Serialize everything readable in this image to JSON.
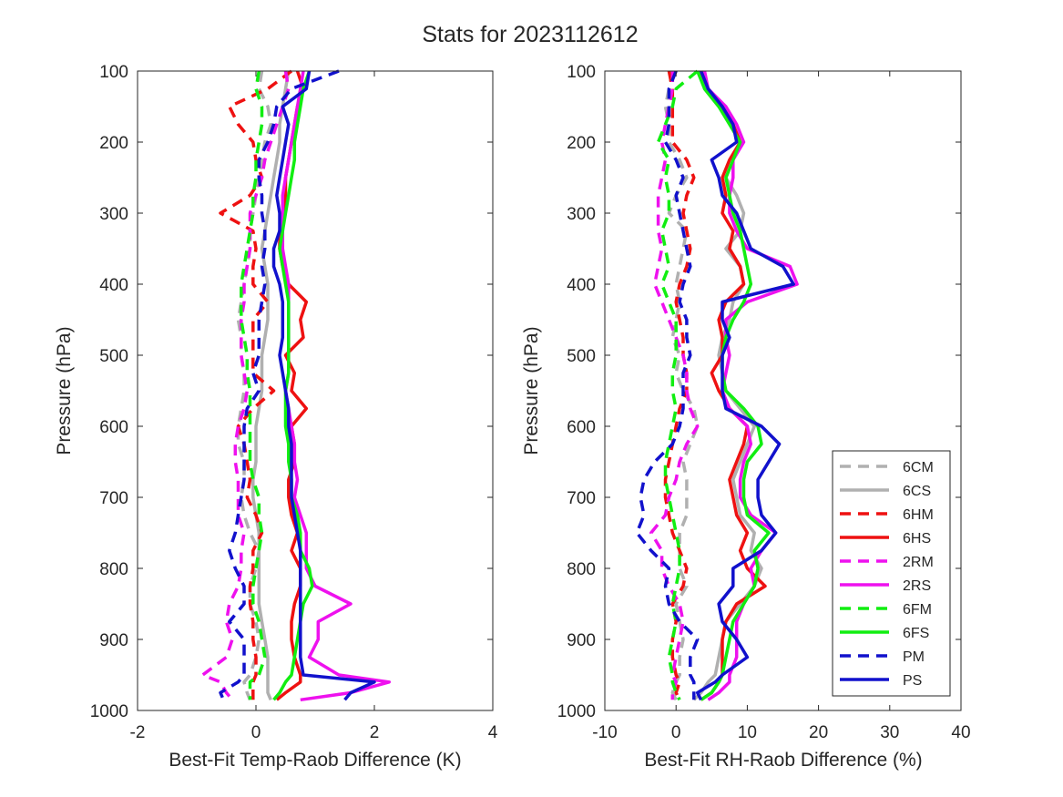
{
  "figure": {
    "title": "Stats for 2023112612"
  },
  "styles": {
    "6CM": {
      "color": "#b0b0b0",
      "dash": true
    },
    "6CS": {
      "color": "#b0b0b0",
      "dash": false
    },
    "6HM": {
      "color": "#ee1111",
      "dash": true
    },
    "6HS": {
      "color": "#ee1111",
      "dash": false
    },
    "2RM": {
      "color": "#ee11ee",
      "dash": true
    },
    "2RS": {
      "color": "#ee11ee",
      "dash": false
    },
    "6FM": {
      "color": "#11ee11",
      "dash": true
    },
    "6FS": {
      "color": "#11ee11",
      "dash": false
    },
    "PM": {
      "color": "#1111cc",
      "dash": true
    },
    "PS": {
      "color": "#1111cc",
      "dash": false
    }
  },
  "legend": {
    "location": "bottom-right of right panel",
    "entries": [
      "6CM",
      "6CS",
      "6HM",
      "6HS",
      "2RM",
      "2RS",
      "6FM",
      "6FS",
      "PM",
      "PS"
    ]
  },
  "chart_data": [
    {
      "type": "line",
      "xlabel": "Best-Fit Temp-Raob Difference (K)",
      "ylabel": "Pressure (hPa)",
      "xlim": [
        -2,
        4
      ],
      "ylim": [
        1000,
        100
      ],
      "y_reversed": true,
      "xticks": [
        -2,
        0,
        2,
        4
      ],
      "yticks": [
        100,
        200,
        300,
        400,
        500,
        600,
        700,
        800,
        900,
        1000
      ],
      "grid": false,
      "pressure": [
        100,
        125,
        150,
        175,
        200,
        225,
        250,
        275,
        300,
        325,
        350,
        375,
        400,
        425,
        450,
        475,
        500,
        525,
        550,
        575,
        600,
        625,
        650,
        675,
        700,
        725,
        750,
        775,
        800,
        825,
        850,
        875,
        900,
        925,
        950,
        960,
        975,
        985
      ],
      "series": [
        {
          "name": "6CM",
          "values": [
            0.1,
            0.05,
            0.2,
            0.25,
            0.15,
            0.1,
            0.05,
            0.0,
            -0.05,
            -0.1,
            -0.1,
            -0.15,
            -0.2,
            -0.25,
            -0.3,
            -0.25,
            -0.25,
            -0.2,
            -0.2,
            -0.25,
            -0.3,
            -0.3,
            -0.2,
            -0.2,
            -0.25,
            -0.2,
            -0.1,
            0.05,
            0.0,
            -0.1,
            -0.1,
            0.0,
            0.05,
            0.0,
            -0.1,
            -0.2,
            -0.15,
            -0.1
          ]
        },
        {
          "name": "6CS",
          "values": [
            0.55,
            0.5,
            0.45,
            0.4,
            0.4,
            0.35,
            0.3,
            0.25,
            0.2,
            0.15,
            0.1,
            0.15,
            0.2,
            0.2,
            0.2,
            0.15,
            0.1,
            0.1,
            0.1,
            0.05,
            0.0,
            0.0,
            0.0,
            -0.05,
            -0.05,
            0.0,
            0.05,
            0.05,
            0.05,
            0.05,
            0.05,
            0.1,
            0.15,
            0.2,
            0.2,
            0.2,
            0.2,
            0.25
          ]
        },
        {
          "name": "6HM",
          "values": [
            0.6,
            0.2,
            -0.45,
            -0.3,
            -0.05,
            0.0,
            0.1,
            -0.1,
            -0.6,
            -0.05,
            0.0,
            -0.05,
            -0.05,
            0.2,
            -0.05,
            -0.05,
            -0.05,
            -0.05,
            0.3,
            -0.05,
            -0.3,
            -0.2,
            -0.15,
            -0.1,
            -0.15,
            0.0,
            0.1,
            -0.05,
            -0.05,
            -0.1,
            -0.1,
            -0.05,
            -0.05,
            0.0,
            0.0,
            -0.05,
            -0.05,
            -0.05
          ]
        },
        {
          "name": "6HS",
          "values": [
            0.7,
            0.8,
            0.7,
            0.65,
            0.6,
            0.55,
            0.5,
            0.5,
            0.45,
            0.4,
            0.4,
            0.45,
            0.55,
            0.85,
            0.75,
            0.8,
            0.5,
            0.65,
            0.6,
            0.85,
            0.6,
            0.65,
            0.65,
            0.55,
            0.55,
            0.6,
            0.7,
            0.6,
            0.75,
            0.75,
            0.65,
            0.6,
            0.6,
            0.65,
            0.75,
            0.75,
            0.5,
            0.35
          ]
        },
        {
          "name": "2RM",
          "values": [
            0.5,
            0.55,
            0.45,
            0.35,
            0.25,
            0.15,
            0.1,
            0.0,
            -0.1,
            -0.1,
            -0.1,
            -0.15,
            -0.2,
            -0.2,
            -0.25,
            -0.25,
            -0.25,
            -0.2,
            -0.15,
            -0.2,
            -0.3,
            -0.35,
            -0.35,
            -0.3,
            -0.3,
            -0.3,
            -0.2,
            -0.25,
            -0.25,
            -0.3,
            -0.45,
            -0.5,
            -0.4,
            -0.5,
            -0.9,
            -0.6,
            -0.5,
            -0.4
          ]
        },
        {
          "name": "2RS",
          "values": [
            0.8,
            0.75,
            0.7,
            0.65,
            0.6,
            0.55,
            0.5,
            0.45,
            0.45,
            0.45,
            0.45,
            0.5,
            0.55,
            0.55,
            0.55,
            0.55,
            0.55,
            0.55,
            0.5,
            0.55,
            0.6,
            0.65,
            0.65,
            0.7,
            0.65,
            0.75,
            0.85,
            0.85,
            0.85,
            1.0,
            1.6,
            1.05,
            1.05,
            0.9,
            1.4,
            2.25,
            1.6,
            0.75
          ]
        },
        {
          "name": "6FM",
          "values": [
            0.05,
            0.0,
            0.1,
            0.1,
            0.05,
            0.0,
            0.0,
            -0.05,
            -0.05,
            -0.1,
            -0.15,
            -0.2,
            -0.25,
            -0.25,
            -0.25,
            -0.2,
            -0.15,
            -0.15,
            -0.1,
            -0.1,
            -0.1,
            -0.1,
            -0.1,
            -0.05,
            0.05,
            0.05,
            0.1,
            0.05,
            0.0,
            -0.05,
            -0.05,
            0.05,
            0.1,
            0.15,
            0.05,
            -0.1,
            -0.1,
            -0.1
          ]
        },
        {
          "name": "6FS",
          "values": [
            0.9,
            0.8,
            0.75,
            0.7,
            0.65,
            0.65,
            0.6,
            0.55,
            0.5,
            0.45,
            0.4,
            0.45,
            0.5,
            0.55,
            0.55,
            0.55,
            0.55,
            0.55,
            0.5,
            0.5,
            0.5,
            0.55,
            0.55,
            0.6,
            0.6,
            0.7,
            0.75,
            0.75,
            0.9,
            0.95,
            0.8,
            0.75,
            0.7,
            0.65,
            0.6,
            0.5,
            0.4,
            0.3
          ]
        },
        {
          "name": "PM",
          "values": [
            1.4,
            0.6,
            0.35,
            0.3,
            0.2,
            0.05,
            0.05,
            0.1,
            0.1,
            0.15,
            0.15,
            0.1,
            0.15,
            0.1,
            0.05,
            0.05,
            0.05,
            -0.05,
            0.05,
            -0.15,
            -0.2,
            -0.2,
            -0.2,
            -0.2,
            -0.25,
            -0.3,
            -0.35,
            -0.45,
            -0.35,
            -0.2,
            -0.2,
            -0.45,
            -0.2,
            -0.2,
            -0.2,
            -0.3,
            -0.6,
            -0.55
          ]
        },
        {
          "name": "PS",
          "values": [
            0.9,
            0.85,
            0.45,
            0.55,
            0.5,
            0.45,
            0.4,
            0.35,
            0.4,
            0.4,
            0.3,
            0.3,
            0.4,
            0.45,
            0.45,
            0.45,
            0.4,
            0.45,
            0.5,
            0.55,
            0.55,
            0.6,
            0.6,
            0.6,
            0.6,
            0.65,
            0.7,
            0.75,
            0.75,
            0.75,
            0.75,
            0.75,
            0.75,
            0.75,
            0.8,
            2.0,
            1.6,
            1.5
          ]
        }
      ]
    },
    {
      "type": "line",
      "xlabel": "Best-Fit RH-Raob Difference (%)",
      "ylabel": "Pressure (hPa)",
      "xlim": [
        -10,
        40
      ],
      "ylim": [
        1000,
        100
      ],
      "y_reversed": true,
      "xticks": [
        -10,
        0,
        10,
        20,
        30,
        40
      ],
      "yticks": [
        100,
        200,
        300,
        400,
        500,
        600,
        700,
        800,
        900,
        1000
      ],
      "grid": false,
      "pressure": [
        100,
        125,
        150,
        175,
        200,
        225,
        250,
        275,
        300,
        325,
        350,
        375,
        400,
        425,
        450,
        475,
        500,
        525,
        550,
        575,
        600,
        625,
        650,
        675,
        700,
        725,
        750,
        775,
        800,
        825,
        850,
        875,
        900,
        925,
        950,
        960,
        975,
        985
      ],
      "series": [
        {
          "name": "6CM",
          "values": [
            -0.5,
            -1.0,
            -1.5,
            -1.0,
            -1.0,
            0.5,
            1.5,
            0.0,
            -1.0,
            1.5,
            1.0,
            0.5,
            0.0,
            0.5,
            0.0,
            -0.5,
            0.5,
            0.0,
            1.0,
            2.5,
            3.0,
            2.0,
            1.0,
            1.5,
            1.5,
            1.5,
            0.5,
            0.5,
            0.5,
            1.5,
            0.0,
            0.5,
            1.0,
            0.5,
            0.5,
            0.0,
            -0.5,
            0.0
          ]
        },
        {
          "name": "6CS",
          "values": [
            3.5,
            4.0,
            6.0,
            8.0,
            9.0,
            8.0,
            7.0,
            8.5,
            9.5,
            9.0,
            7.0,
            9.0,
            9.5,
            8.0,
            7.5,
            6.5,
            6.0,
            6.5,
            7.0,
            9.0,
            11.0,
            10.0,
            9.0,
            8.0,
            8.5,
            9.0,
            11.0,
            10.5,
            12.0,
            11.0,
            9.0,
            7.0,
            6.5,
            6.0,
            5.5,
            4.5,
            3.5,
            2.5
          ]
        },
        {
          "name": "6HM",
          "values": [
            -1.0,
            -0.5,
            -0.5,
            -0.5,
            -0.5,
            1.5,
            2.5,
            1.5,
            1.0,
            1.5,
            2.0,
            1.5,
            0.5,
            0.0,
            0.5,
            1.0,
            1.0,
            1.5,
            1.5,
            0.5,
            0.0,
            -0.5,
            -1.0,
            -1.5,
            -1.5,
            -1.0,
            -0.5,
            0.5,
            1.5,
            1.0,
            -0.5,
            0.0,
            -0.5,
            -0.5,
            0.0,
            0.5,
            0.0,
            0.5
          ]
        },
        {
          "name": "6HS",
          "values": [
            3.5,
            4.5,
            6.5,
            8.0,
            9.0,
            7.5,
            6.5,
            7.0,
            6.5,
            8.0,
            7.5,
            9.0,
            9.5,
            7.0,
            6.0,
            6.5,
            6.5,
            5.0,
            6.0,
            7.5,
            10.0,
            9.5,
            8.5,
            7.5,
            8.0,
            8.5,
            10.0,
            9.0,
            10.0,
            12.5,
            8.5,
            7.0,
            6.5,
            6.5,
            6.5,
            6.0,
            5.0,
            3.5
          ]
        },
        {
          "name": "2RM",
          "values": [
            -0.5,
            -0.5,
            -1.0,
            -1.5,
            -2.0,
            -1.5,
            -2.0,
            -2.5,
            -2.5,
            -2.5,
            -2.0,
            -2.5,
            -3.0,
            -2.0,
            -1.0,
            0.0,
            1.0,
            1.5,
            1.5,
            2.0,
            3.0,
            1.5,
            0.5,
            0.0,
            -1.0,
            -1.5,
            -3.5,
            -2.0,
            -2.0,
            -1.0,
            0.5,
            1.0,
            0.5,
            0.0,
            -0.5,
            0.0,
            -0.5,
            -0.5
          ]
        },
        {
          "name": "2RS",
          "values": [
            4.0,
            4.5,
            7.0,
            8.5,
            9.5,
            8.0,
            8.0,
            7.5,
            7.5,
            8.5,
            10.0,
            16.0,
            17.0,
            10.0,
            7.0,
            7.0,
            7.5,
            7.0,
            6.5,
            7.5,
            10.0,
            10.5,
            9.5,
            9.0,
            9.0,
            10.5,
            14.0,
            12.0,
            10.5,
            11.0,
            9.5,
            8.5,
            8.5,
            8.5,
            7.5,
            7.5,
            6.0,
            4.5
          ]
        },
        {
          "name": "6FM",
          "values": [
            3.0,
            0.0,
            -0.5,
            -1.5,
            -2.5,
            -1.0,
            -1.5,
            -1.0,
            -1.0,
            -2.0,
            -1.5,
            -1.0,
            -2.0,
            -1.0,
            0.0,
            0.0,
            0.0,
            -0.5,
            -0.5,
            0.0,
            -0.5,
            -1.0,
            -1.5,
            -1.5,
            -1.0,
            -0.5,
            0.0,
            0.5,
            0.5,
            0.0,
            -0.5,
            0.0,
            -0.5,
            -1.0,
            -0.5,
            -0.5,
            0.0,
            0.5
          ]
        },
        {
          "name": "6FS",
          "values": [
            3.0,
            4.0,
            6.0,
            7.5,
            9.0,
            8.0,
            7.0,
            7.5,
            8.0,
            9.0,
            9.5,
            10.0,
            10.5,
            9.5,
            8.0,
            7.0,
            6.5,
            6.5,
            7.0,
            9.5,
            11.5,
            12.0,
            10.0,
            9.5,
            9.5,
            10.0,
            13.0,
            11.0,
            11.5,
            11.0,
            9.5,
            8.0,
            7.5,
            7.0,
            6.5,
            6.0,
            5.0,
            3.5
          ]
        },
        {
          "name": "PM",
          "values": [
            0.0,
            -1.0,
            -1.0,
            -1.0,
            -1.5,
            0.0,
            1.0,
            0.0,
            0.5,
            1.0,
            1.5,
            2.0,
            1.0,
            0.5,
            1.5,
            1.5,
            2.0,
            1.0,
            1.0,
            1.0,
            0.5,
            -0.5,
            -3.0,
            -4.5,
            -5.0,
            -4.5,
            -5.5,
            -3.5,
            -1.0,
            -1.5,
            -1.0,
            0.5,
            3.0,
            2.0,
            2.0,
            2.5,
            2.5,
            2.5
          ]
        },
        {
          "name": "PS",
          "values": [
            3.5,
            4.5,
            6.5,
            8.0,
            8.5,
            5.0,
            6.0,
            6.5,
            8.5,
            9.5,
            10.5,
            15.0,
            16.5,
            6.5,
            6.5,
            7.5,
            6.5,
            6.5,
            6.5,
            7.0,
            12.0,
            14.5,
            13.0,
            11.5,
            11.5,
            12.0,
            14.0,
            12.0,
            8.0,
            8.0,
            6.0,
            6.5,
            8.5,
            10.0,
            6.5,
            5.5,
            3.0,
            3.5
          ]
        }
      ]
    }
  ]
}
